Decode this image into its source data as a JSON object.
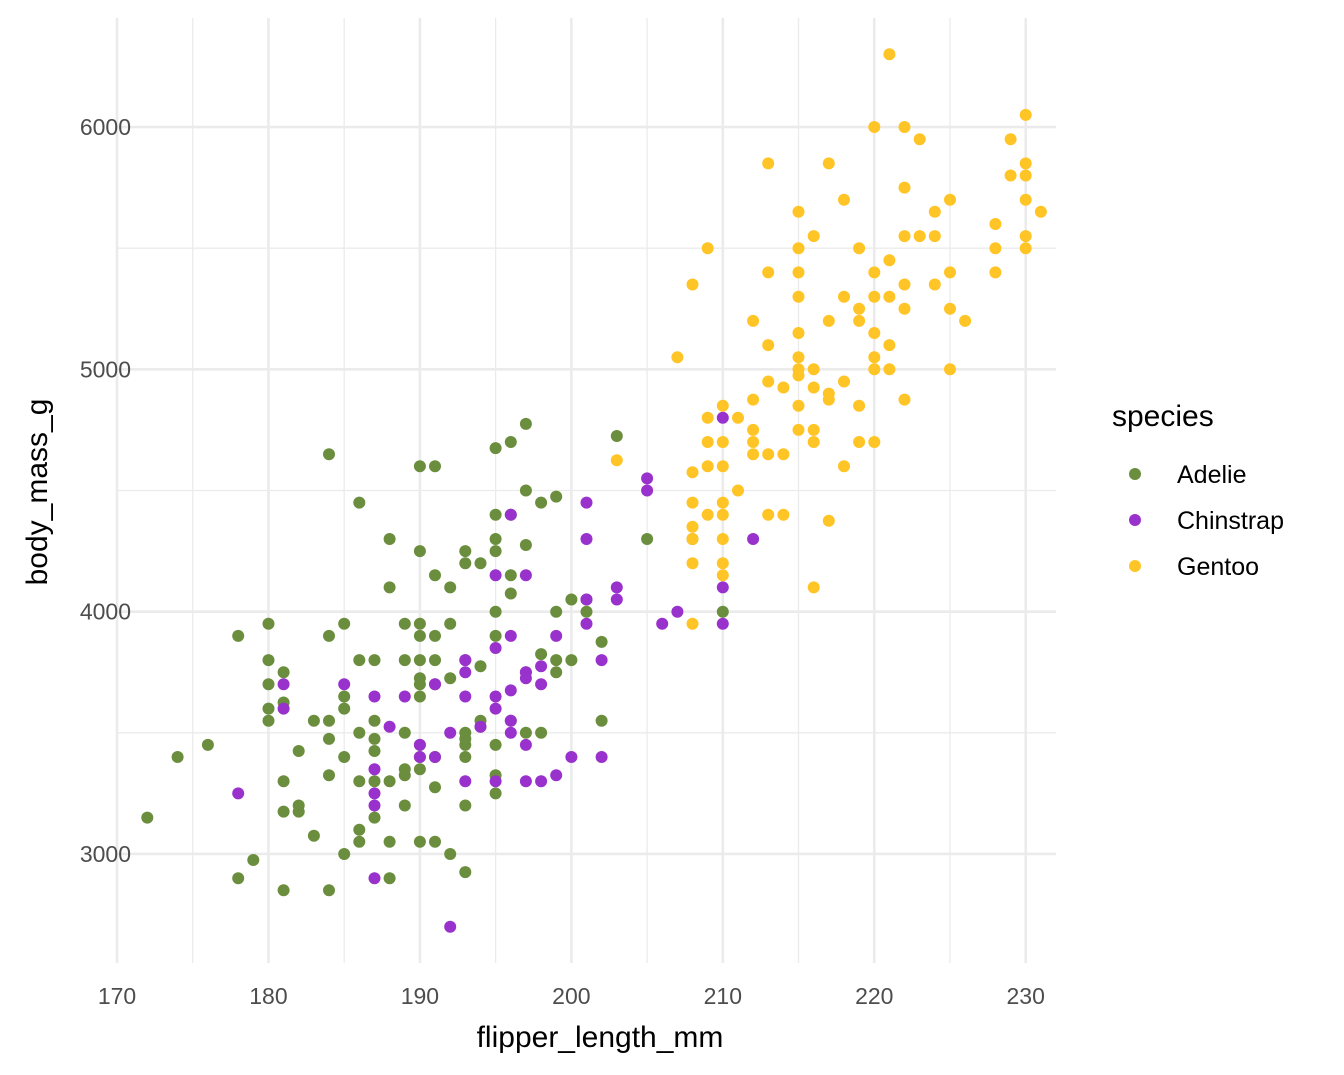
{
  "chart_data": {
    "type": "scatter",
    "xlabel": "flipper_length_mm",
    "ylabel": "body_mass_g",
    "xlim": [
      170,
      232
    ],
    "ylim": [
      2550,
      6450
    ],
    "x_ticks": [
      "170",
      "180",
      "190",
      "200",
      "210",
      "220",
      "230"
    ],
    "y_ticks": [
      "3000",
      "4000",
      "5000",
      "6000"
    ],
    "grid": true,
    "legend": {
      "title": "species",
      "placement": "right"
    },
    "series": [
      {
        "name": "Adelie",
        "color": "#6b8e3e",
        "points": [
          [
            172,
            3150
          ],
          [
            174,
            3400
          ],
          [
            176,
            3450
          ],
          [
            178,
            3900
          ],
          [
            178,
            2900
          ],
          [
            179,
            2975
          ],
          [
            180,
            3950
          ],
          [
            180,
            3800
          ],
          [
            180,
            3700
          ],
          [
            180,
            3600
          ],
          [
            180,
            3550
          ],
          [
            181,
            3750
          ],
          [
            181,
            3625
          ],
          [
            181,
            3300
          ],
          [
            181,
            3175
          ],
          [
            181,
            2850
          ],
          [
            182,
            3425
          ],
          [
            182,
            3200
          ],
          [
            182,
            3175
          ],
          [
            183,
            3550
          ],
          [
            183,
            3075
          ],
          [
            184,
            4650
          ],
          [
            184,
            3900
          ],
          [
            184,
            3550
          ],
          [
            184,
            3475
          ],
          [
            184,
            3325
          ],
          [
            184,
            2850
          ],
          [
            185,
            3950
          ],
          [
            185,
            3650
          ],
          [
            185,
            3600
          ],
          [
            185,
            3400
          ],
          [
            185,
            3000
          ],
          [
            186,
            4450
          ],
          [
            186,
            3800
          ],
          [
            186,
            3500
          ],
          [
            186,
            3300
          ],
          [
            186,
            3100
          ],
          [
            186,
            3050
          ],
          [
            187,
            3800
          ],
          [
            187,
            3550
          ],
          [
            187,
            3475
          ],
          [
            187,
            3425
          ],
          [
            187,
            3300
          ],
          [
            187,
            3150
          ],
          [
            188,
            4300
          ],
          [
            188,
            4100
          ],
          [
            188,
            3300
          ],
          [
            188,
            3050
          ],
          [
            188,
            2900
          ],
          [
            189,
            3950
          ],
          [
            189,
            3800
          ],
          [
            189,
            3500
          ],
          [
            189,
            3350
          ],
          [
            189,
            3325
          ],
          [
            189,
            3200
          ],
          [
            190,
            4600
          ],
          [
            190,
            4250
          ],
          [
            190,
            3950
          ],
          [
            190,
            3900
          ],
          [
            190,
            3800
          ],
          [
            190,
            3725
          ],
          [
            190,
            3700
          ],
          [
            190,
            3650
          ],
          [
            190,
            3450
          ],
          [
            190,
            3400
          ],
          [
            190,
            3350
          ],
          [
            190,
            3050
          ],
          [
            191,
            4600
          ],
          [
            191,
            4150
          ],
          [
            191,
            3900
          ],
          [
            191,
            3800
          ],
          [
            191,
            3700
          ],
          [
            191,
            3400
          ],
          [
            191,
            3275
          ],
          [
            191,
            3050
          ],
          [
            192,
            4100
          ],
          [
            192,
            3950
          ],
          [
            192,
            3725
          ],
          [
            192,
            3000
          ],
          [
            193,
            4250
          ],
          [
            193,
            4200
          ],
          [
            193,
            3800
          ],
          [
            193,
            3500
          ],
          [
            193,
            3475
          ],
          [
            193,
            3450
          ],
          [
            193,
            3400
          ],
          [
            193,
            3200
          ],
          [
            193,
            2925
          ],
          [
            194,
            4200
          ],
          [
            194,
            3775
          ],
          [
            194,
            3550
          ],
          [
            194,
            3525
          ],
          [
            195,
            4675
          ],
          [
            195,
            4400
          ],
          [
            195,
            4300
          ],
          [
            195,
            4250
          ],
          [
            195,
            4000
          ],
          [
            195,
            3900
          ],
          [
            195,
            3450
          ],
          [
            195,
            3325
          ],
          [
            195,
            3250
          ],
          [
            196,
            4700
          ],
          [
            196,
            4400
          ],
          [
            196,
            4150
          ],
          [
            196,
            4075
          ],
          [
            196,
            3550
          ],
          [
            197,
            4775
          ],
          [
            197,
            4500
          ],
          [
            197,
            4275
          ],
          [
            197,
            3750
          ],
          [
            197,
            3500
          ],
          [
            198,
            4450
          ],
          [
            198,
            3825
          ],
          [
            198,
            3500
          ],
          [
            199,
            4475
          ],
          [
            199,
            4000
          ],
          [
            199,
            3800
          ],
          [
            199,
            3750
          ],
          [
            200,
            4050
          ],
          [
            200,
            3800
          ],
          [
            201,
            4050
          ],
          [
            201,
            4000
          ],
          [
            202,
            3875
          ],
          [
            202,
            3550
          ],
          [
            203,
            4725
          ],
          [
            205,
            4300
          ],
          [
            208,
            4300
          ],
          [
            210,
            4000
          ]
        ]
      },
      {
        "name": "Chinstrap",
        "color": "#9932cc",
        "points": [
          [
            178,
            3250
          ],
          [
            181,
            3700
          ],
          [
            181,
            3600
          ],
          [
            185,
            3700
          ],
          [
            187,
            3650
          ],
          [
            187,
            3350
          ],
          [
            187,
            3250
          ],
          [
            187,
            3200
          ],
          [
            187,
            2900
          ],
          [
            188,
            3525
          ],
          [
            189,
            3650
          ],
          [
            190,
            3450
          ],
          [
            190,
            3400
          ],
          [
            191,
            3700
          ],
          [
            191,
            3400
          ],
          [
            192,
            3500
          ],
          [
            192,
            2700
          ],
          [
            193,
            3800
          ],
          [
            193,
            3750
          ],
          [
            193,
            3650
          ],
          [
            193,
            3300
          ],
          [
            194,
            3525
          ],
          [
            195,
            4150
          ],
          [
            195,
            3850
          ],
          [
            195,
            3650
          ],
          [
            195,
            3600
          ],
          [
            195,
            3300
          ],
          [
            196,
            4400
          ],
          [
            196,
            3900
          ],
          [
            196,
            3675
          ],
          [
            196,
            3550
          ],
          [
            196,
            3500
          ],
          [
            197,
            4150
          ],
          [
            197,
            3750
          ],
          [
            197,
            3725
          ],
          [
            197,
            3450
          ],
          [
            197,
            3300
          ],
          [
            198,
            3775
          ],
          [
            198,
            3700
          ],
          [
            198,
            3300
          ],
          [
            199,
            3900
          ],
          [
            199,
            3325
          ],
          [
            200,
            3400
          ],
          [
            201,
            4450
          ],
          [
            201,
            4300
          ],
          [
            201,
            4050
          ],
          [
            201,
            3950
          ],
          [
            202,
            3800
          ],
          [
            202,
            3400
          ],
          [
            203,
            4100
          ],
          [
            203,
            4050
          ],
          [
            205,
            4550
          ],
          [
            205,
            4500
          ],
          [
            206,
            3950
          ],
          [
            207,
            4000
          ],
          [
            210,
            4800
          ],
          [
            210,
            4100
          ],
          [
            210,
            3950
          ],
          [
            212,
            4300
          ]
        ]
      },
      {
        "name": "Gentoo",
        "color": "#ffc425",
        "points": [
          [
            203,
            4625
          ],
          [
            207,
            5050
          ],
          [
            208,
            5350
          ],
          [
            208,
            4575
          ],
          [
            208,
            4450
          ],
          [
            208,
            4350
          ],
          [
            208,
            4300
          ],
          [
            208,
            4200
          ],
          [
            208,
            3950
          ],
          [
            209,
            5500
          ],
          [
            209,
            4800
          ],
          [
            209,
            4700
          ],
          [
            209,
            4600
          ],
          [
            209,
            4400
          ],
          [
            210,
            4850
          ],
          [
            210,
            4700
          ],
          [
            210,
            4600
          ],
          [
            210,
            4450
          ],
          [
            210,
            4400
          ],
          [
            210,
            4300
          ],
          [
            210,
            4200
          ],
          [
            210,
            4150
          ],
          [
            211,
            4800
          ],
          [
            211,
            4500
          ],
          [
            212,
            5200
          ],
          [
            212,
            4875
          ],
          [
            212,
            4750
          ],
          [
            212,
            4700
          ],
          [
            212,
            4650
          ],
          [
            213,
            5850
          ],
          [
            213,
            5400
          ],
          [
            213,
            5100
          ],
          [
            213,
            4950
          ],
          [
            213,
            4650
          ],
          [
            213,
            4400
          ],
          [
            214,
            4925
          ],
          [
            214,
            4650
          ],
          [
            214,
            4400
          ],
          [
            215,
            5650
          ],
          [
            215,
            5500
          ],
          [
            215,
            5400
          ],
          [
            215,
            5300
          ],
          [
            215,
            5150
          ],
          [
            215,
            5050
          ],
          [
            215,
            5000
          ],
          [
            215,
            4975
          ],
          [
            215,
            4850
          ],
          [
            215,
            4750
          ],
          [
            216,
            5550
          ],
          [
            216,
            5000
          ],
          [
            216,
            4925
          ],
          [
            216,
            4750
          ],
          [
            216,
            4700
          ],
          [
            216,
            4100
          ],
          [
            217,
            5850
          ],
          [
            217,
            5200
          ],
          [
            217,
            4900
          ],
          [
            217,
            4875
          ],
          [
            217,
            4375
          ],
          [
            218,
            5700
          ],
          [
            218,
            5300
          ],
          [
            218,
            4950
          ],
          [
            218,
            4600
          ],
          [
            219,
            5500
          ],
          [
            219,
            5250
          ],
          [
            219,
            5200
          ],
          [
            219,
            4850
          ],
          [
            219,
            4700
          ],
          [
            220,
            6000
          ],
          [
            220,
            5400
          ],
          [
            220,
            5300
          ],
          [
            220,
            5150
          ],
          [
            220,
            5050
          ],
          [
            220,
            5000
          ],
          [
            220,
            4700
          ],
          [
            221,
            6300
          ],
          [
            221,
            5450
          ],
          [
            221,
            5300
          ],
          [
            221,
            5100
          ],
          [
            221,
            5000
          ],
          [
            222,
            6000
          ],
          [
            222,
            5750
          ],
          [
            222,
            5550
          ],
          [
            222,
            5350
          ],
          [
            222,
            5250
          ],
          [
            222,
            4875
          ],
          [
            223,
            5950
          ],
          [
            223,
            5550
          ],
          [
            224,
            5650
          ],
          [
            224,
            5550
          ],
          [
            224,
            5350
          ],
          [
            225,
            5700
          ],
          [
            225,
            5400
          ],
          [
            225,
            5250
          ],
          [
            225,
            5000
          ],
          [
            226,
            5200
          ],
          [
            228,
            5600
          ],
          [
            228,
            5500
          ],
          [
            228,
            5400
          ],
          [
            229,
            5950
          ],
          [
            229,
            5800
          ],
          [
            230,
            6050
          ],
          [
            230,
            5850
          ],
          [
            230,
            5800
          ],
          [
            230,
            5700
          ],
          [
            230,
            5550
          ],
          [
            230,
            5500
          ],
          [
            231,
            5650
          ]
        ]
      }
    ]
  }
}
